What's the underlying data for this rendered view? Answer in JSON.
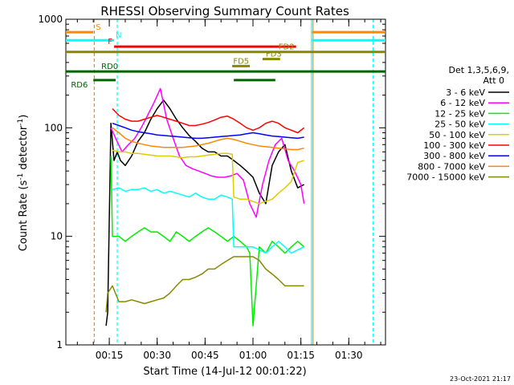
{
  "chart_data": {
    "type": "line",
    "title": "RHESSI Observing Summary Count Rates",
    "xlabel": "Start Time (14-Jul-12 00:01:22)",
    "ylabel_main": "Count Rate (s",
    "ylabel_exp1": "-1",
    "ylabel_mid": " detector",
    "ylabel_exp2": "-1",
    "ylabel_end": ")",
    "x_unit": "minutes after 00:00",
    "xlim": [
      1.4,
      101.5
    ],
    "ylim": [
      1,
      1000
    ],
    "yscale": "log",
    "x_ticks": [
      {
        "value": 15,
        "label": "00:15"
      },
      {
        "value": 30,
        "label": "00:30"
      },
      {
        "value": 45,
        "label": "00:45"
      },
      {
        "value": 60,
        "label": "01:00"
      },
      {
        "value": 75,
        "label": "01:15"
      },
      {
        "value": 90,
        "label": "01:30"
      }
    ],
    "y_ticks": [
      {
        "value": 1,
        "label": "1"
      },
      {
        "value": 10,
        "label": "10"
      },
      {
        "value": 100,
        "label": "100"
      },
      {
        "value": 1000,
        "label": "1000"
      }
    ],
    "legend": {
      "header": [
        "Det 1,3,5,6,9,",
        "Att 0"
      ],
      "placement": "right"
    },
    "series": [
      {
        "name": "3 - 6 keV",
        "color": "#000000",
        "x": [
          14.0,
          14.5,
          15.5,
          16.5,
          17.5,
          18.5,
          20,
          22,
          24,
          26,
          28,
          30,
          32,
          34,
          36,
          38,
          40,
          42,
          44,
          46,
          48,
          50,
          52,
          54,
          56,
          58,
          60,
          62,
          64,
          66,
          68,
          70,
          72,
          74,
          76
        ],
        "y": [
          1.5,
          2,
          110,
          50,
          60,
          50,
          45,
          55,
          75,
          90,
          120,
          150,
          180,
          150,
          120,
          100,
          85,
          75,
          65,
          60,
          60,
          55,
          55,
          50,
          45,
          40,
          35,
          25,
          20,
          45,
          60,
          70,
          40,
          28,
          30
        ]
      },
      {
        "name": "6 - 12 keV",
        "color": "#ff00ff",
        "x": [
          15.5,
          17,
          19,
          21,
          23,
          25,
          27,
          29,
          31,
          33,
          35,
          37,
          39,
          41,
          43,
          45,
          47,
          49,
          51,
          53,
          55,
          57,
          59,
          61,
          63,
          65,
          67,
          69,
          71,
          73,
          75,
          76
        ],
        "y": [
          100,
          80,
          60,
          70,
          80,
          100,
          130,
          170,
          230,
          120,
          80,
          55,
          45,
          42,
          40,
          38,
          36,
          35,
          35,
          36,
          38,
          33,
          20,
          15,
          30,
          50,
          70,
          80,
          50,
          40,
          30,
          20
        ]
      },
      {
        "name": "12 - 25 keV",
        "color": "#00ee00",
        "x": [
          15.5,
          16,
          18,
          20,
          22,
          24,
          26,
          28,
          30,
          32,
          34,
          36,
          38,
          40,
          42,
          44,
          46,
          48,
          50,
          52,
          54,
          56,
          58,
          59,
          60,
          62,
          64,
          66,
          68,
          70,
          72,
          74,
          76
        ],
        "y": [
          55,
          10,
          10,
          9,
          10,
          11,
          12,
          11,
          11,
          10,
          9,
          11,
          10,
          9,
          10,
          11,
          12,
          11,
          10,
          9,
          10,
          9,
          8,
          7,
          1.5,
          8,
          7,
          9,
          8,
          7,
          8,
          9,
          8
        ]
      },
      {
        "name": "25 - 50 keV",
        "color": "#00ffff",
        "x": [
          16,
          18,
          20,
          22,
          24,
          26,
          28,
          30,
          32,
          34,
          36,
          38,
          40,
          42,
          44,
          46,
          48,
          50,
          52,
          53.5,
          54,
          56,
          58,
          60,
          62,
          64,
          66,
          68,
          70,
          72,
          74,
          76
        ],
        "y": [
          27,
          28,
          26,
          27,
          27,
          28,
          26,
          27,
          25,
          26,
          25,
          24,
          23,
          25,
          23,
          22,
          22,
          24,
          23,
          22,
          8,
          8,
          8,
          8,
          7.5,
          7,
          8,
          9,
          8,
          7,
          7.5,
          8
        ]
      },
      {
        "name": "50 - 100 keV",
        "color": "#ddcc00",
        "x": [
          16,
          18,
          20,
          22,
          24,
          26,
          28,
          30,
          32,
          34,
          36,
          38,
          40,
          42,
          44,
          46,
          48,
          50,
          52,
          53.5,
          54,
          56,
          58,
          60,
          62,
          64,
          66,
          68,
          70,
          72,
          74,
          76
        ],
        "y": [
          62,
          60,
          60,
          58,
          58,
          57,
          56,
          55,
          55,
          55,
          54,
          53,
          54,
          54,
          55,
          56,
          57,
          58,
          58,
          57,
          23,
          22,
          22,
          21,
          20,
          21,
          22,
          25,
          28,
          32,
          48,
          50
        ]
      },
      {
        "name": "100 - 300 keV",
        "color": "#ff0000",
        "x": [
          16,
          18,
          20,
          22,
          24,
          26,
          28,
          30,
          32,
          34,
          36,
          38,
          40,
          42,
          44,
          46,
          48,
          50,
          52,
          54,
          56,
          58,
          60,
          62,
          64,
          66,
          68,
          70,
          72,
          74,
          76
        ],
        "y": [
          150,
          130,
          120,
          115,
          115,
          120,
          125,
          130,
          125,
          120,
          115,
          110,
          105,
          105,
          108,
          112,
          118,
          125,
          128,
          120,
          110,
          100,
          95,
          100,
          110,
          115,
          110,
          100,
          95,
          90,
          100
        ]
      },
      {
        "name": "300 - 800 keV",
        "color": "#0000ff",
        "x": [
          16,
          18,
          20,
          22,
          24,
          26,
          28,
          30,
          32,
          34,
          36,
          38,
          40,
          42,
          44,
          46,
          48,
          50,
          52,
          54,
          56,
          58,
          60,
          62,
          64,
          66,
          68,
          70,
          72,
          74,
          76
        ],
        "y": [
          110,
          105,
          100,
          95,
          92,
          90,
          88,
          86,
          85,
          84,
          83,
          82,
          81,
          80,
          80,
          81,
          82,
          83,
          84,
          85,
          86,
          88,
          90,
          88,
          86,
          84,
          83,
          82,
          81,
          80,
          82
        ]
      },
      {
        "name": "800 - 7000 keV",
        "color": "#ff8800",
        "x": [
          16,
          18,
          20,
          22,
          24,
          26,
          28,
          30,
          32,
          34,
          36,
          38,
          40,
          42,
          44,
          46,
          48,
          50,
          52,
          54,
          56,
          58,
          60,
          62,
          64,
          66,
          68,
          70,
          72,
          74,
          76
        ],
        "y": [
          100,
          90,
          80,
          75,
          72,
          70,
          68,
          67,
          66,
          66,
          66,
          66,
          67,
          68,
          70,
          72,
          75,
          78,
          80,
          78,
          75,
          72,
          70,
          68,
          67,
          66,
          65,
          64,
          63,
          63,
          65
        ]
      },
      {
        "name": "7000 - 15000 keV",
        "color": "#888800",
        "x": [
          14.0,
          14.5,
          16,
          18,
          20,
          22,
          24,
          26,
          28,
          30,
          32,
          34,
          36,
          38,
          40,
          42,
          44,
          46,
          48,
          50,
          52,
          54,
          56,
          58,
          60,
          62,
          64,
          66,
          68,
          70,
          72,
          74,
          76
        ],
        "y": [
          2,
          3,
          3.5,
          2.5,
          2.5,
          2.6,
          2.5,
          2.4,
          2.5,
          2.6,
          2.7,
          3,
          3.5,
          4,
          4,
          4.2,
          4.5,
          5,
          5,
          5.5,
          6,
          6.5,
          6.5,
          6.5,
          6.5,
          6,
          5,
          4.5,
          4,
          3.5,
          3.5,
          3.5,
          3.5
        ]
      }
    ],
    "flags": [
      {
        "label": "S",
        "color": "#ff8800",
        "y": 760,
        "segments": [
          [
            1.4,
            10.0
          ],
          [
            78.5,
            101.5
          ]
        ]
      },
      {
        "label": "N",
        "color": "#00ffff",
        "y": 640,
        "segments": [
          [
            1.4,
            16.5
          ],
          [
            78.5,
            101.5
          ]
        ]
      },
      {
        "label": "F",
        "color": "#ff0000",
        "y": 560,
        "segments": [
          [
            16.5,
            73.5
          ]
        ]
      },
      {
        "label": "FD2",
        "color": "#888800",
        "y": 500,
        "segments": [
          [
            1.4,
            101.5
          ]
        ]
      },
      {
        "label": "FD3",
        "color": "#888800",
        "y": 430,
        "segments": [
          [
            63.0,
            68.5
          ]
        ]
      },
      {
        "label": "FD5",
        "color": "#888800",
        "y": 370,
        "segments": [
          [
            53.5,
            59.0
          ]
        ]
      },
      {
        "label": "RD0",
        "color": "#006400",
        "y": 330,
        "segments": [
          [
            1.4,
            101.5
          ]
        ]
      },
      {
        "label": "RD6",
        "color": "#006400",
        "y": 275,
        "segments": [
          [
            10.0,
            17.0
          ],
          [
            54.0,
            67.0
          ]
        ]
      }
    ],
    "vlines": [
      {
        "x": 10.3,
        "color": "#ff8800",
        "dashed": true
      },
      {
        "x": 17.5,
        "color": "#00ffff",
        "dashed": true
      },
      {
        "x": 78.3,
        "color": "#00ffff",
        "dashed": false
      },
      {
        "x": 78.8,
        "color": "#ff8800",
        "dashed": false
      },
      {
        "x": 97.6,
        "color": "#00ffff",
        "dashed": true
      }
    ],
    "timestamp": "23-Oct-2021 21:17"
  }
}
